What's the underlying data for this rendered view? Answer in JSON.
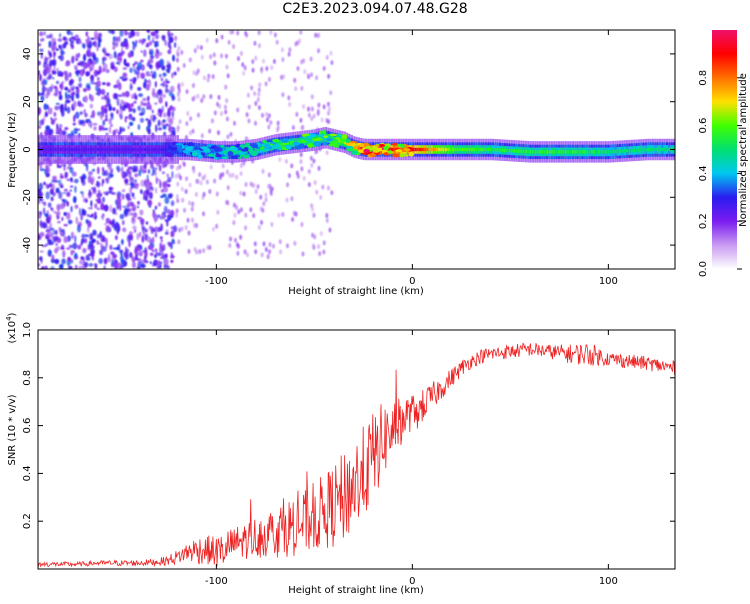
{
  "title": "C2E3.2023.094.07.48.G28",
  "chart_data": [
    {
      "type": "heatmap",
      "title": "C2E3.2023.094.07.48.G28",
      "xlabel": "Height of straight line (km)",
      "ylabel": "Frequency (Hz)",
      "xlim": [
        -191,
        134
      ],
      "ylim": [
        -50,
        50
      ],
      "x_ticks": [
        -100,
        0,
        100
      ],
      "y_ticks": [
        -40,
        -20,
        0,
        20,
        40
      ],
      "x_tick_labels": [
        "-100",
        "0",
        "100"
      ],
      "y_tick_labels": [
        "-40",
        "-20",
        "0",
        "20",
        "40"
      ],
      "colorbar": {
        "label": "Normalized spectral amplitude",
        "range": [
          0,
          1
        ],
        "ticks": [
          0.0,
          0.2,
          0.4,
          0.6,
          0.8
        ],
        "tick_labels": [
          "0.0",
          "0.2",
          "0.4",
          "0.6",
          "0.8"
        ],
        "colormap": [
          "#ffffff",
          "#c99bf2",
          "#7a1cf0",
          "#2a1cf0",
          "#00c8f0",
          "#00e070",
          "#40ff00",
          "#ffe000",
          "#ff7000",
          "#ff0000",
          "#f0106a"
        ]
      },
      "series": [
        {
          "x": [
            -191,
            -170,
            -150,
            -130,
            -115,
            -100,
            -90,
            -80,
            -70,
            -60,
            -50,
            -45,
            -40,
            -35,
            -30,
            -25,
            -20,
            -15,
            -10,
            -5,
            0,
            5,
            10,
            20,
            40,
            60,
            80,
            100,
            120,
            134
          ],
          "center_frequency": [
            0,
            0,
            0,
            0,
            0,
            -1,
            -1,
            0,
            2,
            3,
            4,
            5,
            4,
            3,
            1,
            0,
            0,
            0,
            0,
            0,
            0,
            0,
            0,
            0,
            0,
            -1,
            -1,
            -1,
            0,
            0
          ],
          "peak_amplitude": [
            0.25,
            0.25,
            0.25,
            0.25,
            0.4,
            0.45,
            0.5,
            0.5,
            0.55,
            0.55,
            0.6,
            0.6,
            0.6,
            0.65,
            0.75,
            0.9,
            1.0,
            0.95,
            0.9,
            0.85,
            0.9,
            0.85,
            0.75,
            0.6,
            0.55,
            0.55,
            0.55,
            0.5,
            0.5,
            0.5
          ]
        }
      ]
    },
    {
      "type": "line",
      "xlabel": "Height of straight line (km)",
      "ylabel": "SNR (10 * v/v)",
      "y_scale_label": "(x10",
      "y_scale_exponent": "4",
      "y_scale_suffix": ")",
      "xlim": [
        -191,
        134
      ],
      "ylim": [
        0,
        1.0
      ],
      "x_ticks": [
        -100,
        0,
        100
      ],
      "y_ticks": [
        0.2,
        0.4,
        0.6,
        0.8,
        1.0
      ],
      "x_tick_labels": [
        "-100",
        "0",
        "100"
      ],
      "y_tick_labels": [
        "0.2",
        "0.4",
        "0.6",
        "0.8",
        "1.0"
      ],
      "color": "#ee2222",
      "series": [
        {
          "x": [
            -191,
            -180,
            -170,
            -160,
            -150,
            -140,
            -130,
            -125,
            -120,
            -115,
            -110,
            -105,
            -100,
            -95,
            -90,
            -85,
            -80,
            -75,
            -70,
            -65,
            -60,
            -55,
            -50,
            -45,
            -40,
            -35,
            -30,
            -25,
            -20,
            -15,
            -10,
            -5,
            0,
            5,
            10,
            15,
            20,
            25,
            30,
            35,
            40,
            50,
            60,
            70,
            80,
            90,
            100,
            110,
            120,
            134
          ],
          "values": [
            0.02,
            0.02,
            0.02,
            0.025,
            0.025,
            0.025,
            0.03,
            0.035,
            0.05,
            0.07,
            0.08,
            0.08,
            0.07,
            0.08,
            0.09,
            0.1,
            0.11,
            0.12,
            0.13,
            0.14,
            0.15,
            0.16,
            0.18,
            0.2,
            0.22,
            0.25,
            0.3,
            0.35,
            0.42,
            0.5,
            0.55,
            0.6,
            0.64,
            0.68,
            0.72,
            0.76,
            0.8,
            0.84,
            0.87,
            0.89,
            0.9,
            0.91,
            0.92,
            0.91,
            0.9,
            0.9,
            0.88,
            0.87,
            0.86,
            0.84
          ],
          "noise": [
            0.01,
            0.01,
            0.01,
            0.01,
            0.012,
            0.012,
            0.015,
            0.02,
            0.03,
            0.04,
            0.06,
            0.06,
            0.07,
            0.08,
            0.09,
            0.1,
            0.11,
            0.12,
            0.14,
            0.15,
            0.16,
            0.17,
            0.18,
            0.2,
            0.22,
            0.24,
            0.25,
            0.25,
            0.24,
            0.2,
            0.16,
            0.12,
            0.09,
            0.07,
            0.06,
            0.05,
            0.04,
            0.035,
            0.03,
            0.03,
            0.03,
            0.03,
            0.03,
            0.03,
            0.04,
            0.05,
            0.03,
            0.03,
            0.03,
            0.03
          ]
        }
      ]
    }
  ]
}
